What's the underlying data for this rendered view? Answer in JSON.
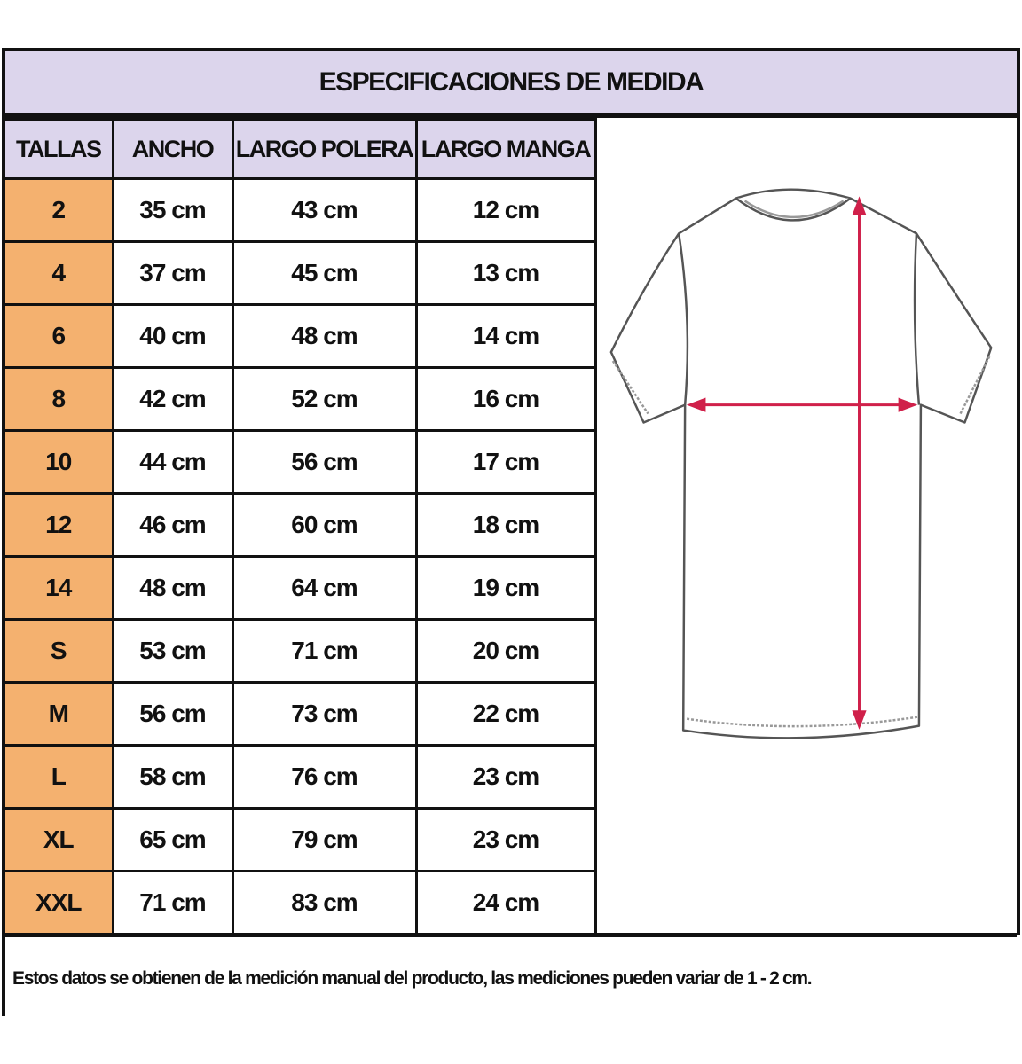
{
  "title": "ESPECIFICACIONES DE MEDIDA",
  "columns": [
    "TALLAS",
    "ANCHO",
    "LARGO POLERA",
    "LARGO MANGA"
  ],
  "rows": [
    [
      "2",
      "35 cm",
      "43 cm",
      "12 cm"
    ],
    [
      "4",
      "37 cm",
      "45 cm",
      "13 cm"
    ],
    [
      "6",
      "40 cm",
      "48 cm",
      "14 cm"
    ],
    [
      "8",
      "42 cm",
      "52 cm",
      "16 cm"
    ],
    [
      "10",
      "44 cm",
      "56 cm",
      "17 cm"
    ],
    [
      "12",
      "46 cm",
      "60 cm",
      "18 cm"
    ],
    [
      "14",
      "48 cm",
      "64 cm",
      "19 cm"
    ],
    [
      "S",
      "53 cm",
      "71 cm",
      "20 cm"
    ],
    [
      "M",
      "56 cm",
      "73 cm",
      "22 cm"
    ],
    [
      "L",
      "58 cm",
      "76 cm",
      "23 cm"
    ],
    [
      "XL",
      "65 cm",
      "79 cm",
      "23 cm"
    ],
    [
      "XXL",
      "71 cm",
      "83 cm",
      "24 cm"
    ]
  ],
  "note": "Estos datos se obtienen de la medición manual del producto, las mediciones pueden variar de 1 - 2 cm.",
  "colors": {
    "header_bg": "#dcd5ec",
    "size_bg": "#f4b16f",
    "arrow": "#d0204a"
  },
  "illustration": "t-shirt-measurement-diagram"
}
